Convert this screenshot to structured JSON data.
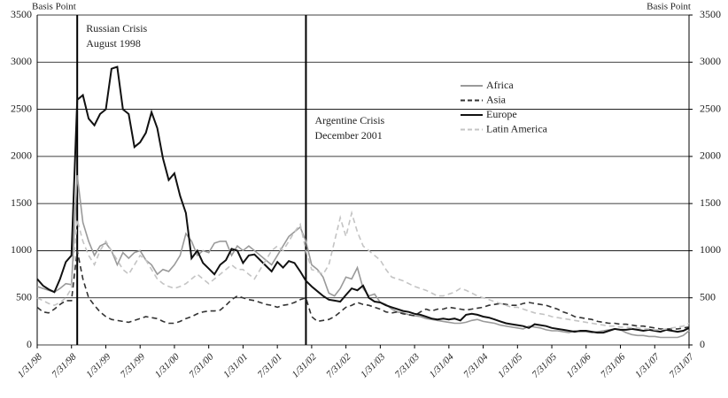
{
  "chart_data": {
    "type": "line",
    "ylabel": "Basis Point",
    "y2label": "Basis Point",
    "categories": [
      "1/31/98",
      null,
      null,
      null,
      null,
      null,
      "7/31/98",
      null,
      null,
      null,
      null,
      null,
      "1/31/99",
      null,
      null,
      null,
      null,
      null,
      "7/31/99",
      null,
      null,
      null,
      null,
      null,
      "1/31/00",
      null,
      null,
      null,
      null,
      null,
      "7/31/00",
      null,
      null,
      null,
      null,
      null,
      "1/31/01",
      null,
      null,
      null,
      null,
      null,
      "7/31/01",
      null,
      null,
      null,
      null,
      null,
      "1/31/02",
      null,
      null,
      null,
      null,
      null,
      "7/31/02",
      null,
      null,
      null,
      null,
      null,
      "1/31/03",
      null,
      null,
      null,
      null,
      null,
      "7/31/03",
      null,
      null,
      null,
      null,
      null,
      "1/31/04",
      null,
      null,
      null,
      null,
      null,
      "7/31/04",
      null,
      null,
      null,
      null,
      null,
      "1/31/05",
      null,
      null,
      null,
      null,
      null,
      "7/31/05",
      null,
      null,
      null,
      null,
      null,
      "1/31/06",
      null,
      null,
      null,
      null,
      null,
      "7/31/06",
      null,
      null,
      null,
      null,
      null,
      "1/31/07",
      null,
      null,
      null,
      null,
      null,
      "7/31/07"
    ],
    "series": [
      {
        "name": "Africa",
        "color": "#9a9a9a",
        "dash": false,
        "values": [
          620,
          600,
          580,
          560,
          600,
          650,
          640,
          1800,
          1300,
          1100,
          950,
          1050,
          1080,
          1000,
          850,
          980,
          920,
          980,
          1000,
          900,
          850,
          750,
          800,
          780,
          850,
          950,
          1180,
          1100,
          950,
          1000,
          980,
          1080,
          1100,
          1100,
          950,
          1050,
          1000,
          1050,
          1000,
          950,
          900,
          850,
          950,
          1050,
          1150,
          1200,
          1250,
          1100,
          850,
          800,
          720,
          550,
          520,
          600,
          720,
          700,
          820,
          600,
          520,
          540,
          450,
          430,
          380,
          350,
          340,
          320,
          310,
          300,
          280,
          270,
          260,
          250,
          240,
          230,
          230,
          240,
          260,
          270,
          250,
          240,
          230,
          210,
          200,
          190,
          180,
          170,
          200,
          190,
          180,
          160,
          150,
          150,
          140,
          130,
          150,
          140,
          140,
          130,
          140,
          150,
          160,
          170,
          160,
          130,
          110,
          100,
          100,
          90,
          90,
          80,
          80,
          80,
          80,
          100,
          150
        ]
      },
      {
        "name": "Asia",
        "color": "#333333",
        "dash": true,
        "values": [
          400,
          350,
          340,
          380,
          430,
          470,
          470,
          1000,
          700,
          500,
          420,
          350,
          300,
          270,
          260,
          250,
          240,
          260,
          280,
          300,
          290,
          280,
          250,
          230,
          230,
          250,
          280,
          300,
          330,
          350,
          360,
          360,
          370,
          420,
          480,
          520,
          500,
          480,
          470,
          450,
          430,
          420,
          400,
          420,
          430,
          450,
          480,
          500,
          300,
          250,
          260,
          270,
          300,
          350,
          400,
          420,
          450,
          430,
          420,
          400,
          380,
          350,
          340,
          350,
          330,
          320,
          310,
          350,
          380,
          360,
          380,
          380,
          400,
          390,
          380,
          370,
          380,
          390,
          400,
          420,
          430,
          440,
          430,
          420,
          420,
          440,
          450,
          440,
          430,
          420,
          400,
          380,
          350,
          330,
          300,
          290,
          280,
          270,
          250,
          240,
          230,
          230,
          220,
          220,
          210,
          200,
          200,
          190,
          180,
          170,
          170,
          170,
          170,
          180,
          190
        ]
      },
      {
        "name": "Europe",
        "color": "#111111",
        "dash": false,
        "values": [
          700,
          630,
          590,
          560,
          700,
          880,
          950,
          2600,
          2650,
          2400,
          2330,
          2450,
          2500,
          2930,
          2950,
          2500,
          2450,
          2100,
          2150,
          2250,
          2470,
          2300,
          1980,
          1750,
          1820,
          1580,
          1400,
          920,
          1000,
          870,
          810,
          750,
          850,
          900,
          1020,
          1000,
          870,
          950,
          960,
          900,
          840,
          780,
          880,
          820,
          890,
          870,
          780,
          680,
          620,
          570,
          520,
          480,
          470,
          460,
          530,
          600,
          580,
          630,
          500,
          460,
          450,
          420,
          400,
          380,
          360,
          350,
          330,
          320,
          300,
          280,
          270,
          280,
          270,
          280,
          260,
          320,
          330,
          320,
          300,
          290,
          270,
          250,
          230,
          220,
          210,
          200,
          180,
          220,
          210,
          200,
          180,
          170,
          160,
          150,
          140,
          150,
          150,
          140,
          130,
          130,
          150,
          170,
          160,
          160,
          170,
          160,
          150,
          160,
          150,
          140,
          160,
          150,
          140,
          150,
          180
        ]
      },
      {
        "name": "Latin America",
        "color": "#c4c4c4",
        "dash": true,
        "values": [
          500,
          470,
          440,
          420,
          450,
          500,
          600,
          1330,
          1100,
          950,
          850,
          1000,
          1100,
          1000,
          900,
          800,
          750,
          850,
          950,
          900,
          800,
          700,
          650,
          620,
          600,
          620,
          650,
          700,
          750,
          700,
          650,
          700,
          750,
          800,
          850,
          800,
          800,
          750,
          700,
          800,
          900,
          1000,
          1050,
          1000,
          1100,
          1200,
          1280,
          1000,
          800,
          780,
          750,
          850,
          1100,
          1350,
          1150,
          1400,
          1200,
          1050,
          1000,
          950,
          900,
          800,
          720,
          700,
          680,
          650,
          620,
          600,
          580,
          550,
          520,
          520,
          540,
          560,
          600,
          580,
          550,
          520,
          500,
          480,
          460,
          440,
          420,
          400,
          400,
          380,
          360,
          340,
          330,
          320,
          300,
          290,
          280,
          270,
          260,
          250,
          240,
          230,
          220,
          210,
          200,
          200,
          190,
          190,
          180,
          180,
          170,
          170,
          160,
          160,
          170,
          180,
          190,
          200,
          230
        ]
      }
    ],
    "ylim": [
      0,
      3500
    ],
    "yticks": [
      0,
      500,
      1000,
      1500,
      2000,
      2500,
      3000,
      3500
    ],
    "y2lim": [
      0,
      3500
    ],
    "y2ticks": [
      0,
      500,
      1000,
      1500,
      2000,
      2500,
      3000,
      3500
    ],
    "grid": true,
    "annotations": [
      {
        "lines": [
          "Russian Crisis",
          "August 1998"
        ]
      },
      {
        "lines": [
          "Argentine Crisis",
          "December 2001"
        ]
      }
    ]
  }
}
